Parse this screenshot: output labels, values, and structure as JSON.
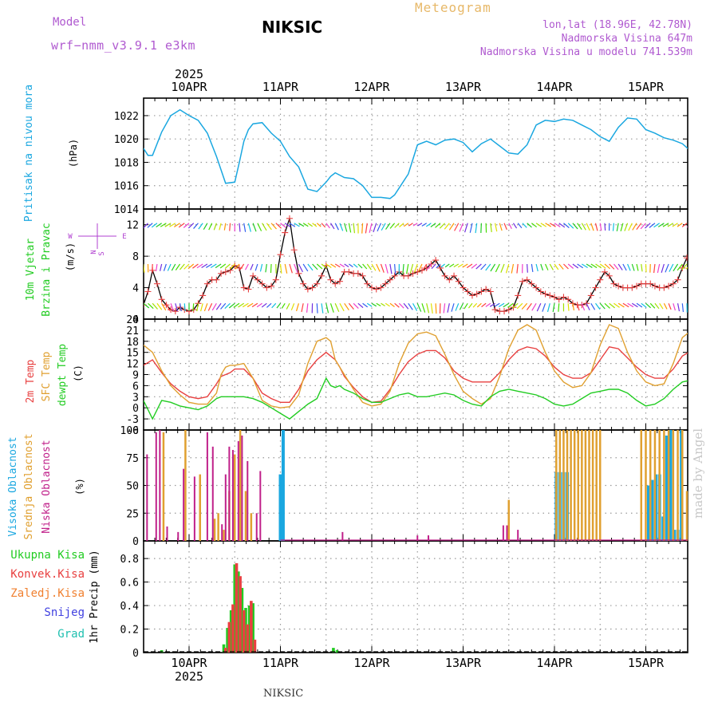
{
  "header": {
    "model_label": "Model",
    "model_name": "wrf−nmm_v3.9.1  e3km",
    "station": "NIKSIC",
    "title": "Meteogram",
    "lonlat": "lon,lat (18.96E, 42.78N)",
    "elevation": "Nadmorska Visina 647m",
    "model_elevation": "Nadmorska Visina u modelu 741.539m"
  },
  "footer": {
    "station": "NIKSIC",
    "credit": "made by Angel"
  },
  "colors": {
    "pressure": "#1aa7e0",
    "wind_label": "#22cc22",
    "wind_units": "#b040d0",
    "t2m": "#e84040",
    "sfc": "#e0a030",
    "dewpt": "#22cc22",
    "high_cloud": "#1aa7e0",
    "mid_cloud": "#e0a030",
    "low_cloud": "#c0208a",
    "total_precip": "#22cc22",
    "conv_precip": "#e84040",
    "freez_precip": "#f08030",
    "snow": "#4040e0",
    "hail": "#20c0b0"
  },
  "chart_data": [
    {
      "type": "line",
      "title": "Pritisak na nivou mora",
      "ylabel": "(hPa)",
      "ylim": [
        1014,
        1023.5
      ],
      "yticks": [
        1014,
        1016,
        1018,
        1020,
        1022
      ],
      "x_dates": [
        "10APR",
        "11APR",
        "12APR",
        "13APR",
        "14APR",
        "15APR"
      ],
      "x_year": "2025",
      "x": [
        -0.5,
        -0.45,
        -0.4,
        -0.3,
        -0.2,
        -0.1,
        0,
        0.1,
        0.2,
        0.3,
        0.4,
        0.5,
        0.55,
        0.6,
        0.65,
        0.7,
        0.8,
        0.9,
        1,
        1.1,
        1.2,
        1.3,
        1.4,
        1.5,
        1.55,
        1.6,
        1.7,
        1.8,
        1.9,
        2,
        2.1,
        2.2,
        2.25,
        2.3,
        2.4,
        2.5,
        2.6,
        2.7,
        2.8,
        2.9,
        3,
        3.1,
        3.2,
        3.3,
        3.4,
        3.5,
        3.6,
        3.7,
        3.8,
        3.9,
        4,
        4.1,
        4.2,
        4.3,
        4.4,
        4.5,
        4.6,
        4.7,
        4.8,
        4.9,
        5,
        5.1,
        5.2,
        5.3,
        5.4,
        5.5
      ],
      "series": [
        {
          "name": "Pressure",
          "values": [
            1019.2,
            1018.6,
            1018.6,
            1020.6,
            1022.0,
            1022.5,
            1022.0,
            1021.6,
            1020.5,
            1018.5,
            1016.2,
            1016.3,
            1018.0,
            1019.8,
            1020.8,
            1021.3,
            1021.4,
            1020.5,
            1019.8,
            1018.5,
            1017.6,
            1015.7,
            1015.5,
            1016.3,
            1016.8,
            1017.1,
            1016.7,
            1016.6,
            1016.0,
            1015.0,
            1015.0,
            1014.9,
            1015.2,
            1015.8,
            1017.0,
            1019.5,
            1019.8,
            1019.5,
            1019.9,
            1020.0,
            1019.7,
            1018.9,
            1019.6,
            1020.0,
            1019.4,
            1018.8,
            1018.7,
            1019.5,
            1021.2,
            1021.6,
            1021.5,
            1021.7,
            1021.6,
            1021.2,
            1020.8,
            1020.2,
            1019.8,
            1021.0,
            1021.8,
            1021.7,
            1020.8,
            1020.5,
            1020.1,
            1019.9,
            1019.6,
            1018.9
          ]
        }
      ]
    },
    {
      "type": "line",
      "title": "10m Vjetar Brzina i Pravac",
      "ylabel": "(m/s)",
      "ylim": [
        0,
        14
      ],
      "yticks": [
        0,
        4,
        8,
        12
      ],
      "compass": [
        "N",
        "E",
        "S",
        "W"
      ],
      "x": [
        -0.5,
        -0.45,
        -0.4,
        -0.35,
        -0.3,
        -0.25,
        -0.2,
        -0.15,
        -0.1,
        -0.05,
        0,
        0.05,
        0.1,
        0.15,
        0.2,
        0.25,
        0.3,
        0.35,
        0.4,
        0.45,
        0.5,
        0.55,
        0.6,
        0.65,
        0.7,
        0.75,
        0.8,
        0.85,
        0.9,
        0.95,
        1,
        1.05,
        1.1,
        1.15,
        1.2,
        1.25,
        1.3,
        1.35,
        1.4,
        1.45,
        1.5,
        1.55,
        1.6,
        1.65,
        1.7,
        1.75,
        1.8,
        1.85,
        1.9,
        1.95,
        2,
        2.05,
        2.1,
        2.15,
        2.2,
        2.25,
        2.3,
        2.35,
        2.4,
        2.45,
        2.5,
        2.55,
        2.6,
        2.65,
        2.7,
        2.75,
        2.8,
        2.85,
        2.9,
        2.95,
        3,
        3.05,
        3.1,
        3.15,
        3.2,
        3.25,
        3.3,
        3.35,
        3.4,
        3.45,
        3.5,
        3.55,
        3.6,
        3.65,
        3.7,
        3.75,
        3.8,
        3.85,
        3.9,
        3.95,
        4,
        4.05,
        4.1,
        4.15,
        4.2,
        4.25,
        4.3,
        4.35,
        4.4,
        4.45,
        4.5,
        4.55,
        4.6,
        4.65,
        4.7,
        4.75,
        4.8,
        4.85,
        4.9,
        4.95,
        5,
        5.05,
        5.1,
        5.15,
        5.2,
        5.25,
        5.3,
        5.35,
        5.4,
        5.45,
        5.5
      ],
      "series": [
        {
          "name": "Wind speed",
          "values": [
            1.8,
            3.5,
            6.2,
            4.5,
            2.5,
            1.8,
            1.2,
            1.0,
            1.5,
            1.2,
            1.0,
            1.2,
            2.0,
            3.0,
            4.5,
            5.0,
            5.0,
            5.8,
            6.0,
            6.2,
            6.8,
            6.5,
            4.0,
            3.8,
            5.5,
            5.0,
            4.5,
            4.0,
            4.2,
            5.0,
            8.2,
            11.0,
            12.8,
            8.8,
            5.8,
            4.5,
            3.8,
            4.0,
            4.5,
            5.5,
            6.8,
            5.0,
            4.5,
            4.8,
            6.0,
            6.0,
            5.8,
            5.8,
            5.5,
            4.5,
            4.0,
            3.8,
            4.0,
            4.5,
            5.0,
            5.5,
            6.0,
            5.5,
            5.5,
            5.8,
            6.0,
            6.2,
            6.5,
            7.0,
            7.5,
            6.5,
            5.5,
            5.0,
            5.5,
            4.8,
            4.0,
            3.5,
            3.0,
            3.2,
            3.5,
            3.8,
            3.5,
            1.2,
            1.0,
            1.0,
            1.2,
            1.5,
            3.0,
            4.8,
            5.0,
            4.5,
            4.0,
            3.5,
            3.2,
            3.0,
            2.8,
            2.5,
            2.8,
            2.5,
            2.0,
            1.8,
            1.8,
            2.0,
            3.0,
            4.0,
            5.0,
            6.0,
            5.5,
            4.5,
            4.2,
            4.0,
            4.0,
            4.0,
            4.2,
            4.5,
            4.5,
            4.5,
            4.2,
            4.0,
            4.0,
            4.2,
            4.5,
            5.0,
            6.5,
            7.8,
            9.0
          ]
        },
        {
          "name": "Direction (deg)",
          "values": [
            80,
            80,
            80,
            80,
            80,
            80,
            80,
            80,
            80,
            80,
            80,
            80,
            80,
            80,
            80,
            80,
            80,
            80,
            80,
            80,
            80,
            80,
            80,
            80,
            80,
            80,
            80,
            80,
            80,
            80,
            80,
            80,
            80,
            80,
            80,
            80,
            80,
            80,
            80,
            80,
            80,
            80,
            80,
            80,
            80,
            80,
            80,
            80,
            80,
            80,
            80,
            80,
            80,
            80,
            80,
            80,
            80,
            80,
            80,
            80,
            80,
            80,
            80,
            80,
            80,
            80,
            80,
            80,
            80,
            80,
            80,
            80,
            80,
            80,
            80,
            80,
            80,
            80,
            80,
            80,
            80,
            80,
            80,
            80,
            80,
            80,
            80,
            80,
            80,
            80,
            80,
            80,
            80,
            80,
            80,
            80,
            80,
            80,
            80,
            80,
            80,
            80,
            80,
            80,
            80,
            80,
            80,
            80,
            80,
            80,
            80,
            80,
            80,
            80,
            80,
            80,
            80,
            80,
            80,
            80,
            80
          ]
        }
      ]
    },
    {
      "type": "line",
      "ylabel": "(C)",
      "ylim": [
        -6,
        24
      ],
      "yticks": [
        -6,
        -3,
        0,
        3,
        6,
        9,
        12,
        15,
        18,
        21,
        24
      ],
      "series_labels": [
        "2m Temp",
        "SFC Temp",
        "dewpt Temp"
      ],
      "x": [
        -0.5,
        -0.4,
        -0.3,
        -0.2,
        -0.1,
        0,
        0.1,
        0.2,
        0.3,
        0.35,
        0.4,
        0.45,
        0.5,
        0.6,
        0.7,
        0.8,
        0.9,
        1,
        1.1,
        1.2,
        1.3,
        1.4,
        1.5,
        1.55,
        1.6,
        1.65,
        1.7,
        1.8,
        1.9,
        2,
        2.1,
        2.2,
        2.3,
        2.4,
        2.5,
        2.6,
        2.7,
        2.8,
        2.9,
        3,
        3.1,
        3.2,
        3.3,
        3.4,
        3.5,
        3.6,
        3.7,
        3.8,
        3.9,
        4,
        4.1,
        4.2,
        4.3,
        4.4,
        4.5,
        4.6,
        4.7,
        4.8,
        4.9,
        5,
        5.1,
        5.2,
        5.3,
        5.4,
        5.5
      ],
      "series": [
        {
          "name": "2m Temp",
          "values": [
            11.5,
            13.0,
            9.5,
            6.5,
            4.5,
            3.0,
            2.5,
            3.0,
            6.5,
            8.5,
            9.0,
            9.5,
            10.5,
            10.5,
            8.0,
            4.0,
            2.5,
            1.5,
            1.5,
            5.0,
            10.0,
            13.0,
            15.0,
            14.0,
            13.0,
            11.0,
            8.5,
            5.5,
            3.0,
            1.5,
            1.8,
            5.0,
            9.0,
            12.5,
            14.5,
            15.5,
            15.5,
            13.5,
            10.0,
            8.0,
            7.0,
            7.0,
            7.0,
            9.5,
            13.0,
            15.5,
            16.5,
            16.0,
            14.0,
            11.0,
            9.0,
            8.0,
            8.0,
            9.5,
            13.0,
            16.5,
            16.0,
            13.5,
            11.0,
            9.0,
            8.0,
            8.0,
            10.5,
            14.0,
            15.5
          ]
        },
        {
          "name": "SFC Temp",
          "values": [
            17.0,
            15.0,
            10.0,
            6.0,
            3.5,
            1.5,
            1.0,
            1.0,
            4.0,
            9.0,
            11.0,
            11.5,
            11.5,
            12.0,
            8.0,
            2.0,
            0.5,
            0.0,
            0.3,
            3.5,
            12.0,
            18.0,
            19.0,
            18.0,
            13.0,
            11.0,
            9.0,
            5.0,
            1.5,
            0.5,
            1.0,
            4.5,
            12.0,
            17.5,
            20.0,
            20.5,
            19.5,
            14.5,
            9.0,
            4.5,
            2.5,
            1.0,
            2.5,
            8.5,
            16.0,
            21.0,
            22.5,
            21.0,
            15.0,
            10.0,
            7.0,
            5.5,
            6.0,
            9.5,
            17.0,
            22.5,
            21.5,
            15.0,
            10.0,
            7.0,
            6.0,
            6.5,
            12.0,
            19.0,
            21.0
          ]
        },
        {
          "name": "dewpt Temp",
          "values": [
            2.0,
            -3.0,
            2.0,
            1.5,
            0.5,
            0.0,
            -0.5,
            0.5,
            2.5,
            3.0,
            3.0,
            3.0,
            3.0,
            3.0,
            2.5,
            1.5,
            0.0,
            -1.5,
            -3.0,
            -1.0,
            1.0,
            2.5,
            8.0,
            6.0,
            5.5,
            6.0,
            5.0,
            4.0,
            2.5,
            1.5,
            1.5,
            2.5,
            3.5,
            4.0,
            3.0,
            3.0,
            3.5,
            4.0,
            3.5,
            2.0,
            1.0,
            0.5,
            3.0,
            4.5,
            5.0,
            4.5,
            4.0,
            3.5,
            2.5,
            1.0,
            0.5,
            1.0,
            2.5,
            4.0,
            4.5,
            5.0,
            5.0,
            4.0,
            2.0,
            0.5,
            1.0,
            2.5,
            5.0,
            7.0,
            7.5
          ]
        }
      ]
    },
    {
      "type": "bar",
      "ylabel": "(%)",
      "ylim": [
        0,
        100
      ],
      "yticks": [
        0,
        25,
        50,
        75,
        100
      ],
      "series_labels": [
        "Visoka Oblacnost",
        "Srednja Oblacnost",
        "Niska Oblacnost"
      ],
      "series": [
        {
          "name": "Visoka Oblacnost",
          "x": [
            1.0,
            1.03,
            4.02,
            4.06,
            4.1,
            4.14,
            5.03,
            5.07,
            5.11,
            5.15,
            5.19,
            5.23,
            5.27,
            5.31,
            5.35,
            5.39
          ],
          "values": [
            60,
            100,
            62,
            62,
            62,
            62,
            50,
            55,
            60,
            60,
            22,
            95,
            100,
            10,
            10,
            100
          ]
        },
        {
          "name": "Srednja Oblacnost",
          "x": [
            -0.28,
            -0.04,
            0.12,
            0.28,
            0.32,
            0.38,
            0.44,
            0.5,
            0.56,
            0.62,
            0.68,
            4.02,
            4.06,
            4.1,
            4.14,
            4.18,
            4.22,
            4.26,
            4.3,
            4.34,
            4.38,
            4.42,
            4.46,
            4.5,
            4.95,
            5.0,
            5.05,
            5.1,
            5.15,
            5.2,
            5.25,
            5.3,
            5.35,
            5.4,
            5.45,
            3.5
          ],
          "values": [
            98,
            100,
            60,
            20,
            25,
            10,
            45,
            78,
            100,
            45,
            25,
            100,
            100,
            100,
            100,
            100,
            100,
            100,
            100,
            100,
            100,
            100,
            100,
            100,
            100,
            100,
            100,
            100,
            100,
            100,
            100,
            100,
            100,
            100,
            45,
            37
          ]
        },
        {
          "name": "Niska Oblacnost",
          "x": [
            -0.46,
            -0.36,
            -0.32,
            -0.24,
            -0.12,
            -0.06,
            0.06,
            0.2,
            0.26,
            0.36,
            0.4,
            0.44,
            0.48,
            0.54,
            0.58,
            0.64,
            0.74,
            0.78,
            1.68,
            2.5,
            2.62,
            3.44,
            3.48,
            3.6
          ],
          "values": [
            78,
            98,
            100,
            13,
            8,
            65,
            58,
            98,
            85,
            15,
            60,
            85,
            82,
            90,
            95,
            72,
            25,
            63,
            8,
            5,
            5,
            14,
            14,
            10
          ]
        }
      ]
    },
    {
      "type": "bar",
      "ylabel": "1hr Precip (mm)",
      "ylim": [
        0,
        0.95
      ],
      "yticks": [
        0,
        0.2,
        0.4,
        0.6,
        0.8
      ],
      "series_labels": [
        "Ukupna Kisa",
        "Konvek.Kisa",
        "Zaledj.Kisa",
        "Snijeg",
        "Grad"
      ],
      "series": [
        {
          "name": "Ukupna Kisa",
          "x": [
            -0.3,
            0.38,
            0.42,
            0.46,
            0.5,
            0.54,
            0.58,
            0.62,
            0.66,
            0.7,
            1.58,
            1.62
          ],
          "values": [
            0.02,
            0.07,
            0.21,
            0.36,
            0.75,
            0.69,
            0.55,
            0.38,
            0.4,
            0.42,
            0.04,
            0.02
          ]
        },
        {
          "name": "Konvek.Kisa",
          "x": [
            0.4,
            0.44,
            0.48,
            0.52,
            0.56,
            0.6,
            0.64,
            0.68,
            0.72
          ],
          "values": [
            0.04,
            0.26,
            0.41,
            0.76,
            0.65,
            0.36,
            0.24,
            0.44,
            0.11
          ]
        }
      ]
    }
  ]
}
